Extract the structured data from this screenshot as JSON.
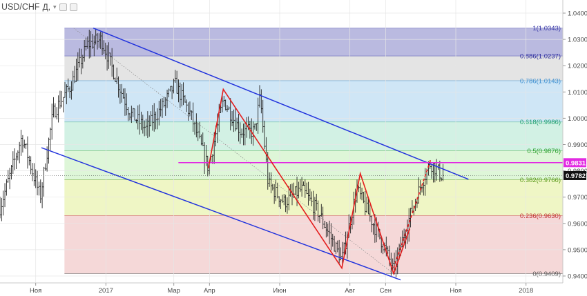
{
  "header": {
    "symbol": "USD/CHF",
    "interval": "Д,",
    "dropdown_icon": "chevron-down-icon",
    "buttons": [
      "settings-icon",
      "close-icon"
    ]
  },
  "chart_data": {
    "type": "ohlc",
    "symbol": "USD/CHF",
    "y_range": [
      0.9385,
      1.0425
    ],
    "y_ticks": [
      "1.0400",
      "1.0300",
      "1.0200",
      "1.0100",
      "1.0000",
      "0.9900",
      "0.9800",
      "0.9700",
      "0.9600",
      "0.9500",
      "0.9400"
    ],
    "x_tick_labels": [
      {
        "label": "Ноя",
        "date": "2016-11-01"
      },
      {
        "label": "2017",
        "date": "2017-01-01"
      },
      {
        "label": "Мар",
        "date": "2017-03-01"
      },
      {
        "label": "Апр",
        "date": "2017-04-01"
      },
      {
        "label": "Июн",
        "date": "2017-06-01"
      },
      {
        "label": "Авг",
        "date": "2017-08-01"
      },
      {
        "label": "Сен",
        "date": "2017-09-01"
      },
      {
        "label": "Ноя",
        "date": "2017-11-01"
      },
      {
        "label": "2018",
        "date": "2018-01-01"
      }
    ],
    "price_path": [
      [
        "2016-10-01",
        0.966
      ],
      [
        "2016-10-20",
        0.993
      ],
      [
        "2016-11-05",
        0.97
      ],
      [
        "2016-11-16",
        1.002
      ],
      [
        "2016-12-01",
        1.012
      ],
      [
        "2016-12-16",
        1.028
      ],
      [
        "2016-12-28",
        1.03
      ],
      [
        "2017-01-10",
        1.015
      ],
      [
        "2017-01-22",
        1.002
      ],
      [
        "2017-02-05",
        0.996
      ],
      [
        "2017-02-20",
        1.005
      ],
      [
        "2017-03-02",
        1.013
      ],
      [
        "2017-03-15",
        1.002
      ],
      [
        "2017-03-31",
        0.981
      ],
      [
        "2017-04-13",
        1.007
      ],
      [
        "2017-04-28",
        0.995
      ],
      [
        "2017-05-10",
        0.995
      ],
      [
        "2017-05-15",
        1.008
      ],
      [
        "2017-05-22",
        0.975
      ],
      [
        "2017-06-05",
        0.968
      ],
      [
        "2017-06-20",
        0.973
      ],
      [
        "2017-07-05",
        0.964
      ],
      [
        "2017-07-25",
        0.946
      ],
      [
        "2017-08-07",
        0.973
      ],
      [
        "2017-08-20",
        0.961
      ],
      [
        "2017-09-01",
        0.95
      ],
      [
        "2017-09-08",
        0.942
      ],
      [
        "2017-09-20",
        0.96
      ],
      [
        "2017-10-02",
        0.975
      ],
      [
        "2017-10-10",
        0.983
      ],
      [
        "2017-10-20",
        0.9782
      ]
    ],
    "fibonacci": {
      "levels": [
        {
          "ratio": "1",
          "price": "1.0343",
          "label": "1(1.0343)",
          "color": "#3a3aa8"
        },
        {
          "ratio": "0.886",
          "price": "1.0237",
          "label": "0.886(1.0237)",
          "color": "#2c2c9e"
        },
        {
          "ratio": "0.786",
          "price": "1.0143",
          "label": "0.786(1.0143)",
          "color": "#3d8fd0"
        },
        {
          "ratio": "0.618",
          "price": "0.9986",
          "label": "0.618(0.9986)",
          "color": "#20a070"
        },
        {
          "ratio": "0.5",
          "price": "0.9876",
          "label": "0.5(0.9876)",
          "color": "#2aa02a"
        },
        {
          "ratio": "0.382",
          "price": "0.9766",
          "label": "0.382(0.9766)",
          "color": "#5a9a1a"
        },
        {
          "ratio": "0.236",
          "price": "0.9630",
          "label": "0.236(0.9630)",
          "color": "#c03030"
        },
        {
          "ratio": "0",
          "price": "0.9409",
          "label": "0(0.9409)",
          "color": "#555555"
        }
      ],
      "zone_colors": [
        "#babae0",
        "#e4e4e4",
        "#cfe6f6",
        "#d2f1e4",
        "#def6d8",
        "#eff6c5",
        "#f5d8d8"
      ]
    },
    "channel_lines": [
      {
        "from": [
          "2016-12-21",
          1.0343
        ],
        "to": [
          "2017-11-12",
          0.9768
        ],
        "color": "#2233dd"
      },
      {
        "from": [
          "2016-11-06",
          0.9888
        ],
        "to": [
          "2017-09-14",
          0.9385
        ],
        "color": "#2233dd"
      }
    ],
    "horizontal_level": {
      "price": "0.9831",
      "color": "#e22be2"
    },
    "last_price": {
      "price": "0.9782"
    },
    "pattern_zigzag": [
      [
        "2017-03-31",
        0.981
      ],
      [
        "2017-04-13",
        1.011
      ],
      [
        "2017-07-25",
        0.943
      ],
      [
        "2017-08-10",
        0.979
      ],
      [
        "2017-09-08",
        0.9409
      ],
      [
        "2017-09-22",
        0.958
      ]
    ],
    "pattern_dashed": [
      [
        "2017-09-08",
        0.943
      ],
      [
        "2017-10-10",
        0.984
      ]
    ],
    "fib_anchor_dotted": [
      [
        "2016-12-19",
        1.0343
      ],
      [
        "2017-09-08",
        0.9409
      ]
    ]
  }
}
